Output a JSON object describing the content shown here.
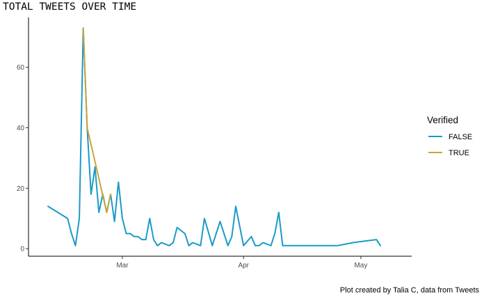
{
  "chart_data": {
    "type": "line",
    "title": "TOTAL TWEETS OVER TIME",
    "caption": "Plot created by Talia C, data from Tweets",
    "xlabel": "",
    "ylabel": "",
    "x_axis_type": "date",
    "xlim": [
      "2021-02-05",
      "2021-05-14"
    ],
    "ylim": [
      -2.5,
      76.5
    ],
    "x_ticks": [
      {
        "date": "2021-03-01",
        "label": "Mar"
      },
      {
        "date": "2021-04-01",
        "label": "Apr"
      },
      {
        "date": "2021-05-01",
        "label": "May"
      }
    ],
    "y_ticks": [
      0,
      20,
      40,
      60
    ],
    "grid": false,
    "legend": {
      "title": "Verified",
      "position": "right"
    },
    "series": [
      {
        "name": "FALSE",
        "color": "#1a9ac7",
        "points": [
          [
            "2021-02-10",
            14
          ],
          [
            "2021-02-15",
            10
          ],
          [
            "2021-02-16",
            5
          ],
          [
            "2021-02-17",
            1
          ],
          [
            "2021-02-18",
            10
          ],
          [
            "2021-02-19",
            73
          ],
          [
            "2021-02-20",
            40
          ],
          [
            "2021-02-21",
            18
          ],
          [
            "2021-02-22",
            27
          ],
          [
            "2021-02-23",
            12
          ],
          [
            "2021-02-24",
            18
          ],
          [
            "2021-02-25",
            12
          ],
          [
            "2021-02-26",
            18
          ],
          [
            "2021-02-27",
            9
          ],
          [
            "2021-02-28",
            22
          ],
          [
            "2021-03-01",
            10
          ],
          [
            "2021-03-02",
            5
          ],
          [
            "2021-03-03",
            5
          ],
          [
            "2021-03-04",
            4
          ],
          [
            "2021-03-05",
            4
          ],
          [
            "2021-03-06",
            3
          ],
          [
            "2021-03-07",
            3
          ],
          [
            "2021-03-08",
            10
          ],
          [
            "2021-03-09",
            3
          ],
          [
            "2021-03-10",
            1
          ],
          [
            "2021-03-11",
            2
          ],
          [
            "2021-03-13",
            1
          ],
          [
            "2021-03-14",
            2
          ],
          [
            "2021-03-15",
            7
          ],
          [
            "2021-03-17",
            5
          ],
          [
            "2021-03-18",
            1
          ],
          [
            "2021-03-19",
            2
          ],
          [
            "2021-03-21",
            1
          ],
          [
            "2021-03-22",
            10
          ],
          [
            "2021-03-24",
            1
          ],
          [
            "2021-03-26",
            9
          ],
          [
            "2021-03-28",
            1
          ],
          [
            "2021-03-29",
            4
          ],
          [
            "2021-03-30",
            14
          ],
          [
            "2021-04-01",
            1
          ],
          [
            "2021-04-03",
            4
          ],
          [
            "2021-04-04",
            1
          ],
          [
            "2021-04-05",
            1
          ],
          [
            "2021-04-06",
            2
          ],
          [
            "2021-04-08",
            1
          ],
          [
            "2021-04-09",
            5
          ],
          [
            "2021-04-10",
            12
          ],
          [
            "2021-04-11",
            1
          ],
          [
            "2021-04-22",
            1
          ],
          [
            "2021-04-25",
            1
          ],
          [
            "2021-04-29",
            2
          ],
          [
            "2021-05-05",
            3
          ],
          [
            "2021-05-06",
            1
          ]
        ]
      },
      {
        "name": "TRUE",
        "color": "#c9a43a",
        "points": [
          [
            "2021-02-19",
            73
          ],
          [
            "2021-02-20",
            40
          ],
          [
            "2021-02-25",
            12
          ],
          [
            "2021-02-26",
            18
          ]
        ]
      }
    ]
  }
}
